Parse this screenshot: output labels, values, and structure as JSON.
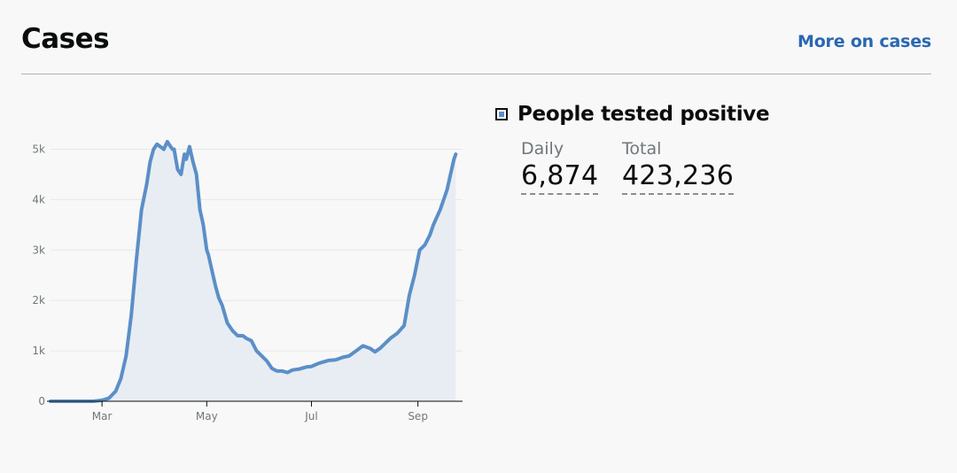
{
  "card": {
    "title": "Cases",
    "more_link": "More on cases"
  },
  "headline": {
    "label": "People tested positive",
    "swatch_color": "#5a8fcc"
  },
  "stats": {
    "daily_label": "Daily",
    "daily_value": "6,874",
    "total_label": "Total",
    "total_value": "423,236"
  },
  "chart_data": {
    "type": "area",
    "title": "",
    "xlabel": "",
    "ylabel": "",
    "grid": true,
    "ylim": [
      0,
      5500
    ],
    "xlim": [
      "2020-01-31",
      "2020-09-27"
    ],
    "y_ticks": [
      0,
      1000,
      2000,
      3000,
      4000,
      5000
    ],
    "y_tick_labels": [
      "0",
      "1k",
      "2k",
      "3k",
      "4k",
      "5k"
    ],
    "x_ticks": [
      "2020-03-01",
      "2020-05-01",
      "2020-07-01",
      "2020-09-01"
    ],
    "x_tick_labels": [
      "Mar",
      "May",
      "Jul",
      "Sep"
    ],
    "line_color": "#5b8fc7",
    "fill_color": "#e8edf3",
    "x": [
      "2020-01-31",
      "2020-02-15",
      "2020-02-25",
      "2020-03-01",
      "2020-03-05",
      "2020-03-09",
      "2020-03-12",
      "2020-03-15",
      "2020-03-18",
      "2020-03-21",
      "2020-03-24",
      "2020-03-27",
      "2020-03-29",
      "2020-03-31",
      "2020-04-02",
      "2020-04-04",
      "2020-04-06",
      "2020-04-08",
      "2020-04-09",
      "2020-04-10",
      "2020-04-11",
      "2020-04-12",
      "2020-04-14",
      "2020-04-16",
      "2020-04-18",
      "2020-04-19",
      "2020-04-21",
      "2020-04-23",
      "2020-04-25",
      "2020-04-27",
      "2020-04-29",
      "2020-05-01",
      "2020-05-02",
      "2020-05-04",
      "2020-05-06",
      "2020-05-08",
      "2020-05-10",
      "2020-05-13",
      "2020-05-16",
      "2020-05-19",
      "2020-05-22",
      "2020-05-24",
      "2020-05-27",
      "2020-05-30",
      "2020-06-02",
      "2020-06-05",
      "2020-06-08",
      "2020-06-11",
      "2020-06-14",
      "2020-06-17",
      "2020-06-20",
      "2020-06-24",
      "2020-06-28",
      "2020-07-01",
      "2020-07-03",
      "2020-07-05",
      "2020-07-08",
      "2020-07-11",
      "2020-07-15",
      "2020-07-19",
      "2020-07-23",
      "2020-07-27",
      "2020-07-31",
      "2020-08-04",
      "2020-08-07",
      "2020-08-10",
      "2020-08-13",
      "2020-08-16",
      "2020-08-20",
      "2020-08-24",
      "2020-08-27",
      "2020-08-30",
      "2020-09-02",
      "2020-09-05",
      "2020-09-08",
      "2020-09-10",
      "2020-09-12",
      "2020-09-14",
      "2020-09-16",
      "2020-09-18",
      "2020-09-20",
      "2020-09-22",
      "2020-09-23"
    ],
    "series": [
      {
        "values": [
          0,
          0,
          0,
          20,
          60,
          200,
          450,
          900,
          1700,
          2800,
          3800,
          4300,
          4750,
          5000,
          5100,
          5050,
          5000,
          5150,
          5100,
          5050,
          5000,
          5000,
          4600,
          4500,
          4900,
          4800,
          5050,
          4750,
          4500,
          3800,
          3500,
          3000,
          2900,
          2600,
          2300,
          2050,
          1900,
          1550,
          1400,
          1300,
          1300,
          1250,
          1200,
          1000,
          900,
          800,
          650,
          600,
          600,
          570,
          620,
          640,
          680,
          690,
          720,
          750,
          780,
          810,
          820,
          870,
          900,
          1000,
          1100,
          1050,
          980,
          1050,
          1150,
          1250,
          1350,
          1500,
          2100,
          2500,
          3000,
          3100,
          3300,
          3500,
          3650,
          3800,
          4000,
          4200,
          4500,
          4800,
          4900
        ]
      }
    ]
  }
}
